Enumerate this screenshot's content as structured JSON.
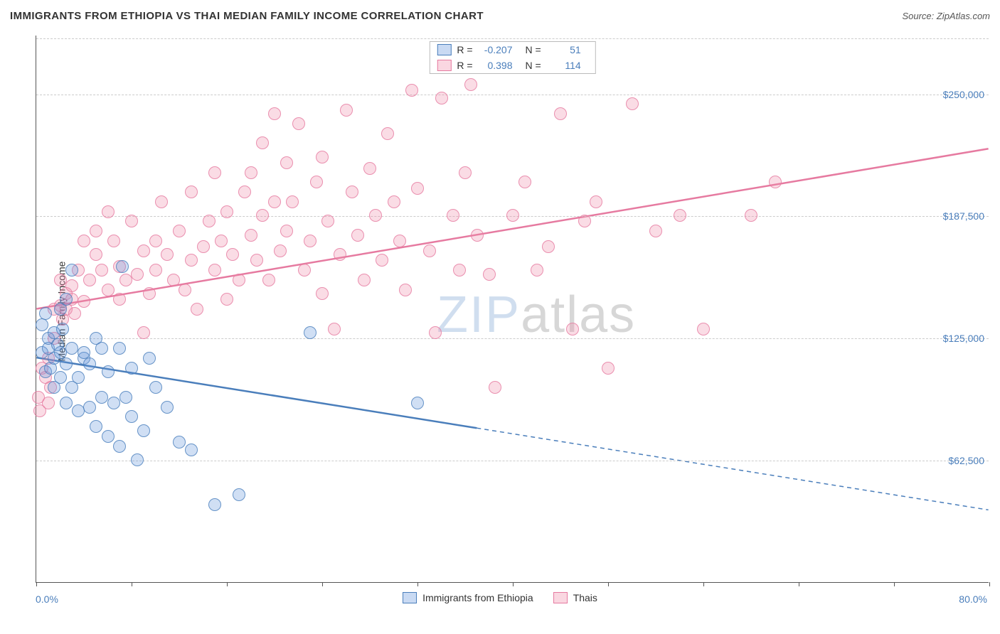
{
  "header": {
    "title": "IMMIGRANTS FROM ETHIOPIA VS THAI MEDIAN FAMILY INCOME CORRELATION CHART",
    "source": "Source: ZipAtlas.com"
  },
  "chart": {
    "type": "scatter",
    "ylabel": "Median Family Income",
    "watermark_zip": "ZIP",
    "watermark_atlas": "atlas",
    "background_color": "#ffffff",
    "grid_color": "#cccccc",
    "axis_color": "#555555",
    "text_color": "#333333",
    "value_color": "#4a7ebb",
    "title_fontsize": 15,
    "label_fontsize": 14,
    "xlim": [
      0,
      80
    ],
    "ylim": [
      0,
      280000
    ],
    "yticks": [
      62500,
      125000,
      187500,
      250000
    ],
    "ytick_labels": [
      "$62,500",
      "$125,000",
      "$187,500",
      "$250,000"
    ],
    "xticks": [
      0,
      8,
      16,
      24,
      32,
      40,
      48,
      56,
      64,
      72,
      80
    ],
    "xaxis_left_label": "0.0%",
    "xaxis_right_label": "80.0%",
    "marker_radius": 9,
    "series": {
      "blue": {
        "label": "Immigrants from Ethiopia",
        "R": "-0.207",
        "N": "51",
        "fill": "rgba(100,150,220,0.30)",
        "stroke": "#4a7ebb",
        "trend": {
          "x1": 0,
          "y1": 115000,
          "x2": 80,
          "y2": 37000,
          "solid_until_x": 37
        },
        "points": [
          [
            0.5,
            132000
          ],
          [
            0.5,
            118000
          ],
          [
            0.8,
            108000
          ],
          [
            0.8,
            138000
          ],
          [
            1,
            120000
          ],
          [
            1,
            125000
          ],
          [
            1.2,
            110000
          ],
          [
            1.5,
            115000
          ],
          [
            1.5,
            128000
          ],
          [
            1.5,
            100000
          ],
          [
            1.8,
            122000
          ],
          [
            2,
            140000
          ],
          [
            2,
            105000
          ],
          [
            2,
            118000
          ],
          [
            2.2,
            130000
          ],
          [
            2.5,
            145000
          ],
          [
            2.5,
            112000
          ],
          [
            2.5,
            92000
          ],
          [
            3,
            160000
          ],
          [
            3,
            120000
          ],
          [
            3,
            100000
          ],
          [
            3.5,
            105000
          ],
          [
            3.5,
            88000
          ],
          [
            4,
            115000
          ],
          [
            4,
            118000
          ],
          [
            4.5,
            90000
          ],
          [
            4.5,
            112000
          ],
          [
            5,
            125000
          ],
          [
            5,
            80000
          ],
          [
            5.5,
            120000
          ],
          [
            5.5,
            95000
          ],
          [
            6,
            108000
          ],
          [
            6,
            75000
          ],
          [
            6.5,
            92000
          ],
          [
            7,
            120000
          ],
          [
            7,
            70000
          ],
          [
            7.2,
            162000
          ],
          [
            7.5,
            95000
          ],
          [
            8,
            85000
          ],
          [
            8,
            110000
          ],
          [
            8.5,
            63000
          ],
          [
            9,
            78000
          ],
          [
            9.5,
            115000
          ],
          [
            10,
            100000
          ],
          [
            11,
            90000
          ],
          [
            12,
            72000
          ],
          [
            13,
            68000
          ],
          [
            15,
            40000
          ],
          [
            17,
            45000
          ],
          [
            23,
            128000
          ],
          [
            32,
            92000
          ]
        ]
      },
      "pink": {
        "label": "Thais",
        "R": "0.398",
        "N": "114",
        "fill": "rgba(240,140,170,0.30)",
        "stroke": "#e67aa0",
        "trend": {
          "x1": 0,
          "y1": 140000,
          "x2": 80,
          "y2": 222000,
          "solid_until_x": 80
        },
        "points": [
          [
            0.2,
            95000
          ],
          [
            0.3,
            88000
          ],
          [
            0.5,
            110000
          ],
          [
            0.8,
            105000
          ],
          [
            1,
            92000
          ],
          [
            1,
            115000
          ],
          [
            1.2,
            100000
          ],
          [
            1.5,
            140000
          ],
          [
            1.5,
            125000
          ],
          [
            2,
            142000
          ],
          [
            2,
            155000
          ],
          [
            2.2,
            135000
          ],
          [
            2.5,
            148000
          ],
          [
            2.5,
            140000
          ],
          [
            3,
            145000
          ],
          [
            3,
            152000
          ],
          [
            3.2,
            138000
          ],
          [
            3.5,
            160000
          ],
          [
            4,
            144000
          ],
          [
            4,
            175000
          ],
          [
            4.5,
            155000
          ],
          [
            5,
            168000
          ],
          [
            5,
            180000
          ],
          [
            5.5,
            160000
          ],
          [
            6,
            150000
          ],
          [
            6,
            190000
          ],
          [
            6.5,
            175000
          ],
          [
            7,
            162000
          ],
          [
            7,
            145000
          ],
          [
            7.5,
            155000
          ],
          [
            8,
            185000
          ],
          [
            8.5,
            158000
          ],
          [
            9,
            170000
          ],
          [
            9,
            128000
          ],
          [
            9.5,
            148000
          ],
          [
            10,
            175000
          ],
          [
            10,
            160000
          ],
          [
            10.5,
            195000
          ],
          [
            11,
            168000
          ],
          [
            11.5,
            155000
          ],
          [
            12,
            180000
          ],
          [
            12.5,
            150000
          ],
          [
            13,
            200000
          ],
          [
            13,
            165000
          ],
          [
            13.5,
            140000
          ],
          [
            14,
            172000
          ],
          [
            14.5,
            185000
          ],
          [
            15,
            160000
          ],
          [
            15,
            210000
          ],
          [
            15.5,
            175000
          ],
          [
            16,
            190000
          ],
          [
            16,
            145000
          ],
          [
            16.5,
            168000
          ],
          [
            17,
            155000
          ],
          [
            17.5,
            200000
          ],
          [
            18,
            210000
          ],
          [
            18,
            178000
          ],
          [
            18.5,
            165000
          ],
          [
            19,
            225000
          ],
          [
            19,
            188000
          ],
          [
            19.5,
            155000
          ],
          [
            20,
            195000
          ],
          [
            20,
            240000
          ],
          [
            20.5,
            170000
          ],
          [
            21,
            180000
          ],
          [
            21,
            215000
          ],
          [
            21.5,
            195000
          ],
          [
            22,
            235000
          ],
          [
            22.5,
            160000
          ],
          [
            23,
            175000
          ],
          [
            23.5,
            205000
          ],
          [
            24,
            148000
          ],
          [
            24,
            218000
          ],
          [
            24.5,
            185000
          ],
          [
            25,
            130000
          ],
          [
            25.5,
            168000
          ],
          [
            26,
            242000
          ],
          [
            26.5,
            200000
          ],
          [
            27,
            178000
          ],
          [
            27.5,
            155000
          ],
          [
            28,
            212000
          ],
          [
            28.5,
            188000
          ],
          [
            29,
            165000
          ],
          [
            29.5,
            230000
          ],
          [
            30,
            195000
          ],
          [
            30.5,
            175000
          ],
          [
            31,
            150000
          ],
          [
            31.5,
            252000
          ],
          [
            32,
            202000
          ],
          [
            33,
            170000
          ],
          [
            33.5,
            128000
          ],
          [
            34,
            248000
          ],
          [
            35,
            188000
          ],
          [
            35.5,
            160000
          ],
          [
            36,
            210000
          ],
          [
            36.5,
            255000
          ],
          [
            37,
            178000
          ],
          [
            38,
            158000
          ],
          [
            38.5,
            100000
          ],
          [
            40,
            188000
          ],
          [
            41,
            205000
          ],
          [
            42,
            160000
          ],
          [
            43,
            172000
          ],
          [
            44,
            240000
          ],
          [
            45,
            130000
          ],
          [
            46,
            185000
          ],
          [
            47,
            195000
          ],
          [
            48,
            110000
          ],
          [
            50,
            245000
          ],
          [
            52,
            180000
          ],
          [
            54,
            188000
          ],
          [
            56,
            130000
          ],
          [
            60,
            188000
          ],
          [
            62,
            205000
          ]
        ]
      }
    }
  }
}
